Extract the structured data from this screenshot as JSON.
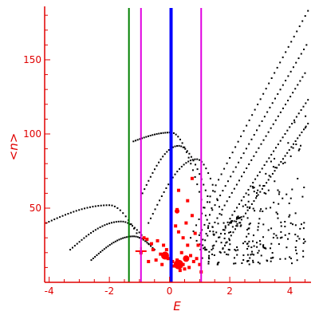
{
  "chart_data": {
    "type": "scatter",
    "xlabel": "E",
    "ylabel": "<n>",
    "xlim": [
      -4.15,
      4.7
    ],
    "ylim": [
      0,
      186
    ],
    "x_ticks": [
      -4,
      -2,
      0,
      2,
      4
    ],
    "y_ticks": [
      50,
      100,
      150
    ],
    "grid": false,
    "colors": {
      "axis": "#e00000",
      "black_points": "#000000",
      "red_points": "#ff0000",
      "green_line": "#008000",
      "magenta_line": "#e000e0",
      "blue_line": "#0000ff"
    },
    "vertical_lines": [
      {
        "x": -1.35,
        "color": "#008000",
        "width": 2
      },
      {
        "x": -0.95,
        "color": "#e000e0",
        "width": 2
      },
      {
        "x": 0.05,
        "color": "#0000ff",
        "width": 4
      },
      {
        "x": 1.05,
        "color": "#e000e0",
        "width": 2
      }
    ],
    "curves": [
      {
        "x_start": -4.1,
        "x_peak": -2.0,
        "x_end": -1.0,
        "y_start": 40,
        "y_peak": 52,
        "y_end": 30
      },
      {
        "x_start": -3.3,
        "x_peak": -1.6,
        "x_end": -0.7,
        "y_start": 22,
        "y_peak": 41,
        "y_end": 26
      },
      {
        "x_start": -2.6,
        "x_peak": -1.2,
        "x_end": -0.5,
        "y_start": 15,
        "y_peak": 31,
        "y_end": 22
      },
      {
        "x_start": -1.2,
        "x_peak": 0.05,
        "x_end": 1.2,
        "y_start": 95,
        "y_peak": 101,
        "y_end": 45
      },
      {
        "x_start": -0.9,
        "x_peak": 0.3,
        "x_end": 1.4,
        "y_start": 60,
        "y_peak": 92,
        "y_end": 50
      },
      {
        "x_start": -0.7,
        "x_peak": 0.9,
        "x_end": 1.8,
        "y_start": 40,
        "y_peak": 83,
        "y_end": 40
      }
    ],
    "rays": [
      {
        "x_start": 0.7,
        "y_start": 30,
        "x_end": 4.6,
        "y_end": 183
      },
      {
        "x_start": 0.9,
        "y_start": 28,
        "x_end": 4.55,
        "y_end": 160
      },
      {
        "x_start": 1.1,
        "y_start": 25,
        "x_end": 4.5,
        "y_end": 141
      },
      {
        "x_start": 1.4,
        "y_start": 22,
        "x_end": 4.6,
        "y_end": 123
      },
      {
        "x_start": 1.7,
        "y_start": 20,
        "x_end": 4.6,
        "y_end": 107
      }
    ],
    "black_scatter": {
      "x_range": [
        1.0,
        4.6
      ],
      "y_range": [
        12,
        40
      ],
      "upper_x_range": [
        2.0,
        4.6
      ],
      "upper_y_range": [
        40,
        125
      ]
    },
    "red_points": [
      [
        -0.85,
        30
      ],
      [
        -0.75,
        29
      ],
      [
        -0.6,
        26
      ],
      [
        -0.4,
        28
      ],
      [
        -0.2,
        25
      ],
      [
        -0.55,
        22
      ],
      [
        -0.3,
        19
      ],
      [
        -0.15,
        17
      ],
      [
        -0.05,
        16
      ],
      [
        0.1,
        14
      ],
      [
        0.25,
        15
      ],
      [
        0.35,
        13
      ],
      [
        0.45,
        12
      ],
      [
        0.55,
        15
      ],
      [
        0.7,
        18
      ],
      [
        0.8,
        14
      ],
      [
        0.9,
        16
      ],
      [
        1.0,
        12
      ],
      [
        0.6,
        25
      ],
      [
        0.45,
        30
      ],
      [
        0.3,
        34
      ],
      [
        0.55,
        40
      ],
      [
        0.75,
        45
      ],
      [
        0.6,
        55
      ],
      [
        0.25,
        49
      ],
      [
        0.2,
        38
      ],
      [
        -0.1,
        22
      ],
      [
        -0.45,
        15
      ],
      [
        -0.7,
        14
      ],
      [
        -0.95,
        20
      ],
      [
        0.5,
        9
      ],
      [
        0.35,
        8
      ],
      [
        0.65,
        10
      ],
      [
        0.15,
        11
      ],
      [
        0.95,
        25
      ],
      [
        0.85,
        33
      ],
      [
        0.4,
        20
      ],
      [
        0.05,
        21
      ],
      [
        -0.25,
        12
      ],
      [
        1.05,
        7
      ],
      [
        0.3,
        62
      ],
      [
        0.75,
        70
      ]
    ],
    "red_clusters": [
      {
        "x": -0.15,
        "y": 18,
        "size": 10
      },
      {
        "x": 0.3,
        "y": 12,
        "size": 12
      },
      {
        "x": 0.55,
        "y": 16,
        "size": 8
      },
      {
        "x": 0.25,
        "y": 48,
        "size": 6
      }
    ],
    "red_crosses": [
      {
        "x": -0.95,
        "y": 21
      }
    ]
  }
}
